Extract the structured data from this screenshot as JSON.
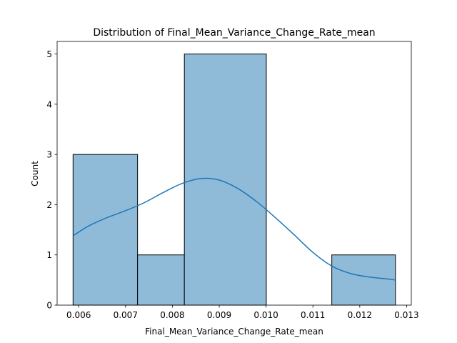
{
  "chart_data": {
    "type": "bar",
    "subtype": "histogram-with-kde",
    "title": "Distribution of Final_Mean_Variance_Change_Rate_mean",
    "xlabel": "Final_Mean_Variance_Change_Rate_mean",
    "ylabel": "Count",
    "xlim": [
      0.00554,
      0.0131
    ],
    "ylim": [
      0,
      5.25
    ],
    "xticks": [
      0.006,
      0.007,
      0.008,
      0.009,
      0.01,
      0.011,
      0.012,
      0.013
    ],
    "xtick_labels": [
      "0.006",
      "0.007",
      "0.008",
      "0.009",
      "0.010",
      "0.011",
      "0.012",
      "0.013"
    ],
    "yticks": [
      0,
      1,
      2,
      3,
      4,
      5
    ],
    "ytick_labels": [
      "0",
      "1",
      "2",
      "3",
      "4",
      "5"
    ],
    "grid": false,
    "bins": [
      {
        "x0": 0.00588,
        "x1": 0.007257,
        "count": 3
      },
      {
        "x0": 0.007257,
        "x1": 0.008256,
        "count": 1
      },
      {
        "x0": 0.008256,
        "x1": 0.010005,
        "count": 5
      },
      {
        "x0": 0.010005,
        "x1": 0.011403,
        "count": 0
      },
      {
        "x0": 0.011403,
        "x1": 0.012762,
        "count": 1
      }
    ],
    "kde": {
      "x": [
        0.00588,
        0.0062,
        0.0066,
        0.007,
        0.0074,
        0.0078,
        0.0082,
        0.0086,
        0.009,
        0.0094,
        0.0098,
        0.0102,
        0.0106,
        0.011,
        0.0114,
        0.0118,
        0.0122,
        0.0126,
        0.01276
      ],
      "y": [
        1.38,
        1.57,
        1.74,
        1.88,
        2.04,
        2.24,
        2.42,
        2.52,
        2.49,
        2.32,
        2.06,
        1.74,
        1.4,
        1.05,
        0.78,
        0.63,
        0.56,
        0.52,
        0.5
      ]
    },
    "colors": {
      "bar_fill": "#8fbbd9",
      "bar_edge": "#000000",
      "kde_line": "#1f77b4"
    }
  }
}
